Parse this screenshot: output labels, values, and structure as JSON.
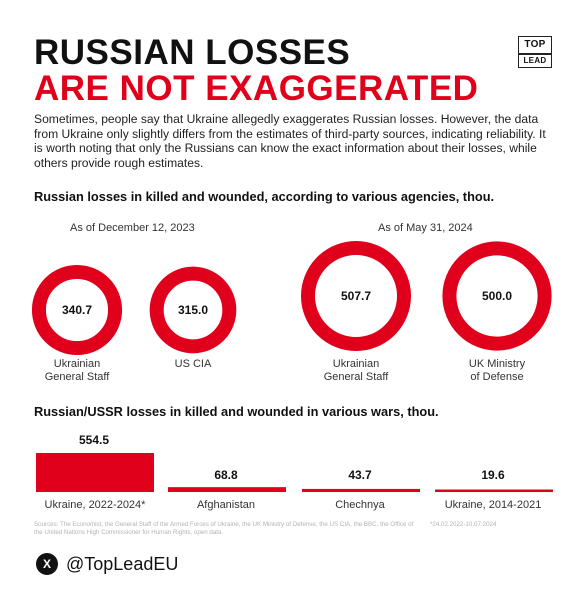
{
  "header": {
    "title_line1": "RUSSIAN LOSSES",
    "title_line2": "ARE NOT EXAGGERATED",
    "logo_line1": "TOP",
    "logo_line2": "LEAD"
  },
  "intro": "Sometimes, people say that Ukraine allegedly exaggerates Russian losses. However, the data from Ukraine only slightly differs from the estimates of third-party sources, indicating reliability. It is worth noting that only the Russians can know the exact information about their losses, while others provide rough estimates.",
  "colors": {
    "accent": "#e0001b",
    "text": "#111111",
    "muted": "#b3b3b3"
  },
  "chart_data": [
    {
      "type": "donut",
      "title": "Russian losses in killed and wounded, according to various agencies, thou.",
      "groups": [
        {
          "label": "As of December 12, 2023",
          "items": [
            {
              "name": "Ukrainian General Staff",
              "caption_lines": [
                "Ukrainian",
                "General Staff"
              ],
              "value": 340.7,
              "value_label": "340.7"
            },
            {
              "name": "US CIA",
              "caption_lines": [
                "US CIA"
              ],
              "value": 315.0,
              "value_label": "315.0"
            }
          ]
        },
        {
          "label": "As of May 31, 2024",
          "items": [
            {
              "name": "Ukrainian General Staff",
              "caption_lines": [
                "Ukrainian",
                "General Staff"
              ],
              "value": 507.7,
              "value_label": "507.7"
            },
            {
              "name": "UK Ministry of Defense",
              "caption_lines": [
                "UK Ministry",
                "of Defense"
              ],
              "value": 500.0,
              "value_label": "500.0"
            }
          ]
        }
      ]
    },
    {
      "type": "bar",
      "title": "Russian/USSR losses in killed and wounded in various wars, thou.",
      "categories": [
        "Ukraine, 2022-2024*",
        "Afghanistan",
        "Chechnya",
        "Ukraine, 2014-2021"
      ],
      "values": [
        554.5,
        68.8,
        43.7,
        19.6
      ],
      "value_labels": [
        "554.5",
        "68.8",
        "43.7",
        "19.6"
      ]
    }
  ],
  "sources": "Sources: The Economist, the General Staff of the Armed Forces of Ukraine, the UK Ministry of Defense, the US CIA, the BBC, the Office of the United Nations High Commissioner for Human Rights, open data.",
  "footnote": "*24.02.2022-10.07.2024",
  "social": {
    "icon": "x-icon",
    "handle": "@TopLeadEU"
  }
}
